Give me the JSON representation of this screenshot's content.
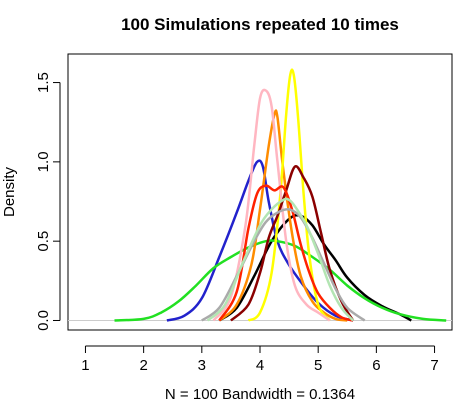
{
  "chart_data": {
    "type": "line",
    "title": "100 Simulations repeated 10 times",
    "xlabel": "N = 100   Bandwidth = 0.1364",
    "ylabel": "Density",
    "xlim": [
      0.7,
      7.3
    ],
    "ylim": [
      -0.06,
      1.68
    ],
    "xticks": [
      1,
      2,
      3,
      4,
      5,
      6,
      7
    ],
    "yticks": [
      0.0,
      0.5,
      1.0,
      1.5
    ],
    "ytick_labels": [
      "0.0",
      "0.5",
      "1.0",
      "1.5"
    ],
    "grid": false,
    "legend": "none",
    "series": [
      {
        "color": "#000000",
        "x": [
          3.3,
          3.6,
          3.9,
          4.2,
          4.5,
          4.7,
          4.9,
          5.1,
          5.3,
          5.5,
          5.8,
          6.1,
          6.4,
          6.6
        ],
        "y": [
          0.0,
          0.08,
          0.28,
          0.5,
          0.64,
          0.66,
          0.6,
          0.48,
          0.38,
          0.27,
          0.16,
          0.09,
          0.04,
          0.0
        ]
      },
      {
        "color": "#2222cc",
        "x": [
          2.4,
          2.7,
          3.0,
          3.3,
          3.6,
          3.8,
          3.95,
          4.05,
          4.15,
          4.3,
          4.5,
          4.75,
          5.0,
          5.3,
          5.6
        ],
        "y": [
          0.0,
          0.03,
          0.14,
          0.4,
          0.68,
          0.88,
          1.0,
          0.97,
          0.75,
          0.5,
          0.35,
          0.22,
          0.11,
          0.03,
          0.0
        ]
      },
      {
        "color": "#22e022",
        "x": [
          1.5,
          2.0,
          2.3,
          2.6,
          2.9,
          3.2,
          3.5,
          3.8,
          4.1,
          4.3,
          4.6,
          4.9,
          5.2,
          5.5,
          5.8,
          6.1,
          6.4,
          6.8,
          7.2
        ],
        "y": [
          0.0,
          0.01,
          0.05,
          0.12,
          0.22,
          0.33,
          0.4,
          0.46,
          0.5,
          0.5,
          0.47,
          0.4,
          0.32,
          0.22,
          0.14,
          0.08,
          0.04,
          0.01,
          0.0
        ]
      },
      {
        "color": "#ff8c00",
        "x": [
          3.3,
          3.6,
          3.85,
          4.0,
          4.15,
          4.25,
          4.3,
          4.4,
          4.55,
          4.7,
          4.9,
          5.1,
          5.3,
          5.5
        ],
        "y": [
          0.0,
          0.1,
          0.35,
          0.7,
          1.1,
          1.3,
          1.28,
          0.95,
          0.55,
          0.28,
          0.12,
          0.05,
          0.01,
          0.0
        ]
      },
      {
        "color": "#ffff00",
        "x": [
          3.8,
          4.0,
          4.2,
          4.35,
          4.45,
          4.52,
          4.58,
          4.65,
          4.75,
          4.85,
          5.0,
          5.2
        ],
        "y": [
          0.0,
          0.05,
          0.3,
          0.8,
          1.3,
          1.55,
          1.55,
          1.3,
          0.8,
          0.4,
          0.1,
          0.0
        ]
      },
      {
        "color": "#ffb6c1",
        "x": [
          3.2,
          3.5,
          3.75,
          3.9,
          4.0,
          4.1,
          4.2,
          4.3,
          4.45,
          4.6,
          4.8,
          5.0,
          5.2
        ],
        "y": [
          0.0,
          0.15,
          0.6,
          1.1,
          1.4,
          1.45,
          1.35,
          1.0,
          0.5,
          0.22,
          0.1,
          0.05,
          0.0
        ]
      },
      {
        "color": "#8b0000",
        "x": [
          3.5,
          3.8,
          4.0,
          4.15,
          4.3,
          4.45,
          4.6,
          4.75,
          4.9,
          5.05,
          5.2,
          5.4,
          5.6
        ],
        "y": [
          0.0,
          0.1,
          0.3,
          0.52,
          0.66,
          0.82,
          0.97,
          0.9,
          0.78,
          0.55,
          0.32,
          0.12,
          0.0
        ]
      },
      {
        "color": "#ff2200",
        "x": [
          3.3,
          3.6,
          3.8,
          3.95,
          4.1,
          4.25,
          4.4,
          4.55,
          4.7,
          4.85,
          5.0,
          5.2,
          5.4,
          5.6
        ],
        "y": [
          0.0,
          0.18,
          0.58,
          0.8,
          0.85,
          0.82,
          0.84,
          0.7,
          0.48,
          0.3,
          0.17,
          0.08,
          0.02,
          0.0
        ]
      },
      {
        "color": "#aaaaaa",
        "x": [
          3.0,
          3.3,
          3.6,
          3.9,
          4.1,
          4.3,
          4.5,
          4.7,
          4.9,
          5.1,
          5.3,
          5.5,
          5.8
        ],
        "y": [
          0.0,
          0.08,
          0.28,
          0.5,
          0.62,
          0.68,
          0.7,
          0.65,
          0.52,
          0.36,
          0.2,
          0.08,
          0.0
        ]
      },
      {
        "color": "#b3e5b3",
        "x": [
          3.1,
          3.4,
          3.7,
          4.0,
          4.2,
          4.4,
          4.5,
          4.6,
          4.8,
          5.0,
          5.2,
          5.4,
          5.6
        ],
        "y": [
          0.0,
          0.1,
          0.36,
          0.6,
          0.7,
          0.76,
          0.76,
          0.72,
          0.6,
          0.42,
          0.22,
          0.08,
          0.0
        ]
      }
    ]
  }
}
